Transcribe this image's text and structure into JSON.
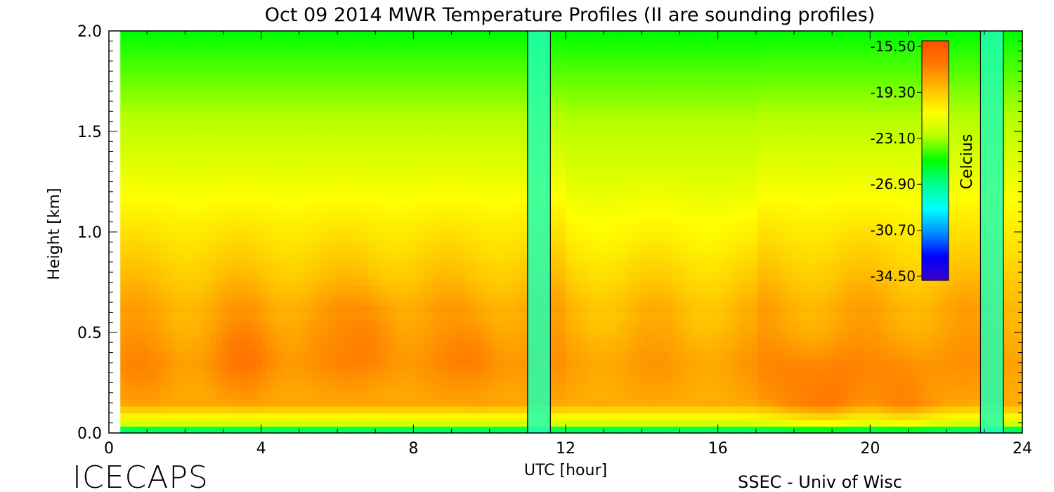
{
  "chart_data": {
    "type": "heatmap",
    "title": "Oct 09 2014 MWR Temperature Profiles (II are sounding profiles)",
    "xlabel": "UTC [hour]",
    "ylabel": "Height [km]",
    "xlim": [
      0,
      24
    ],
    "ylim": [
      0,
      2.0
    ],
    "x_ticks": [
      "0",
      "4",
      "8",
      "12",
      "16",
      "20",
      "24"
    ],
    "y_ticks": [
      "0.0",
      "0.5",
      "1.0",
      "1.5",
      "2.0"
    ],
    "colorbar": {
      "label": "Celcius",
      "ticks": [
        "-15.50",
        "-19.30",
        "-23.10",
        "-26.90",
        "-30.70",
        "-34.50"
      ],
      "range": [
        -34.5,
        -15.5
      ],
      "colormap": [
        "#3a00c8",
        "#0000ff",
        "#0090ff",
        "#00ffff",
        "#00ff90",
        "#00ff00",
        "#b4ff00",
        "#ffff00",
        "#ffc000",
        "#ff7a00",
        "#ff5000"
      ]
    },
    "data_start_hour": 0.3,
    "sounding_gaps": [
      {
        "start": 11.0,
        "end": 11.6
      },
      {
        "start": 22.9,
        "end": 23.5
      }
    ],
    "footer_left": "ICECAPS",
    "footer_right": "SSEC - Univ of Wisc"
  }
}
